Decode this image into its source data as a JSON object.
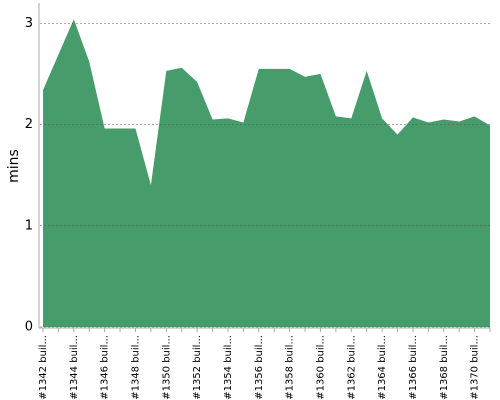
{
  "chart_data": {
    "type": "area",
    "y_label": "mins",
    "categories": [
      "#1342 buil...",
      null,
      "#1344 buil...",
      null,
      "#1346 buil...",
      null,
      "#1348 buil...",
      null,
      "#1350 buil...",
      null,
      "#1352 buil...",
      null,
      "#1354 buil...",
      null,
      "#1356 buil...",
      null,
      "#1358 buil...",
      null,
      "#1360 buil...",
      null,
      "#1362 buil...",
      null,
      "#1364 buil...",
      null,
      "#1366 buil...",
      null,
      "#1368 buil...",
      null,
      "#1370 buil...",
      null
    ],
    "values": [
      2.34,
      2.69,
      3.04,
      2.62,
      1.96,
      1.96,
      1.96,
      1.4,
      2.53,
      2.56,
      2.42,
      2.05,
      2.06,
      2.02,
      2.55,
      2.55,
      2.55,
      2.47,
      2.5,
      2.08,
      2.06,
      2.53,
      2.06,
      1.9,
      2.07,
      2.02,
      2.05,
      2.03,
      2.08,
      1.99
    ],
    "color": "#479c6b",
    "ylim": [
      0,
      3.2
    ],
    "yticks": [
      0,
      1,
      2,
      3
    ],
    "grid": true
  }
}
